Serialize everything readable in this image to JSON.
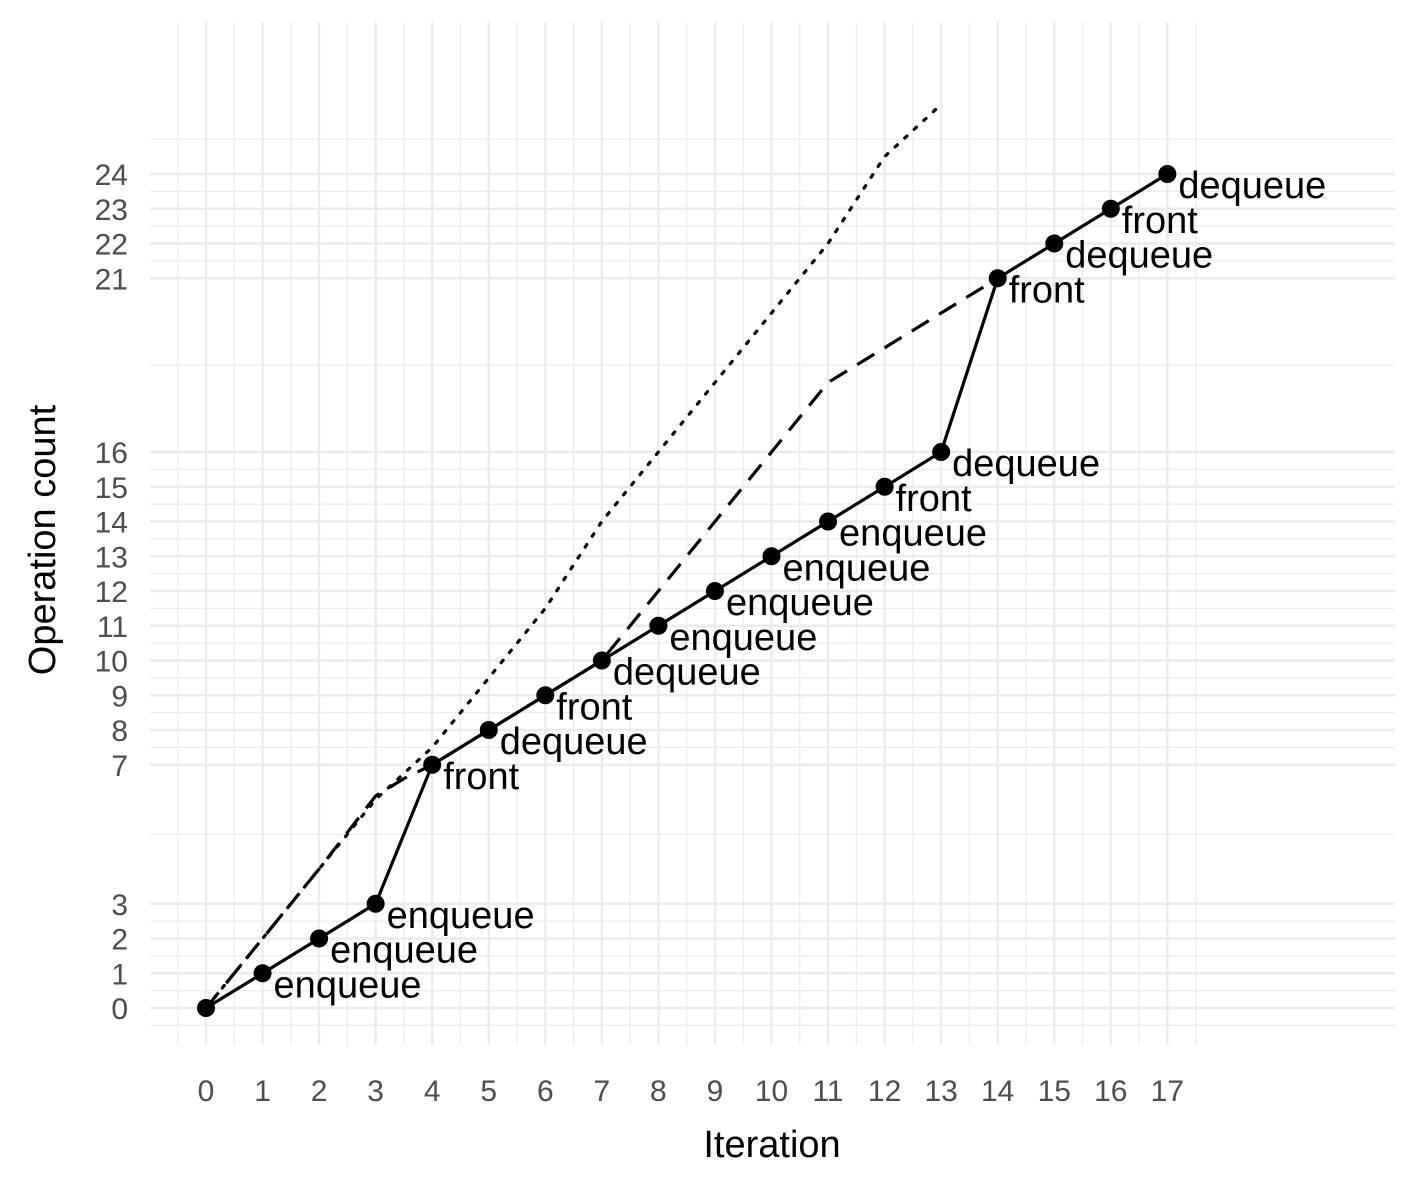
{
  "chart_data": {
    "type": "line",
    "xlabel": "Iteration",
    "ylabel": "Operation count",
    "xlim": [
      -1,
      21
    ],
    "ylim": [
      -0.5,
      30
    ],
    "x_ticks": [
      0,
      1,
      2,
      3,
      4,
      5,
      6,
      7,
      8,
      9,
      10,
      11,
      12,
      13,
      14,
      15,
      16,
      17
    ],
    "y_ticks": [
      0,
      1,
      2,
      3,
      7,
      8,
      9,
      10,
      11,
      12,
      13,
      14,
      15,
      16,
      21,
      22,
      23,
      24
    ],
    "grid": true,
    "series": [
      {
        "style": "solid",
        "markers": true,
        "x": [
          0,
          1,
          2,
          3,
          4,
          5,
          6,
          7,
          8,
          9,
          10,
          11,
          12,
          13,
          14,
          15,
          16,
          17
        ],
        "y": [
          0,
          1,
          2,
          3,
          7,
          8,
          9,
          10,
          11,
          12,
          13,
          14,
          15,
          16,
          21,
          22,
          23,
          24
        ],
        "labels": [
          "",
          "enqueue",
          "enqueue",
          "enqueue",
          "front",
          "dequeue",
          "front",
          "dequeue",
          "enqueue",
          "enqueue",
          "enqueue",
          "enqueue",
          "front",
          "dequeue",
          "front",
          "dequeue",
          "front",
          "dequeue"
        ]
      },
      {
        "style": "dashed",
        "markers": false,
        "x": [
          0,
          1,
          2,
          3,
          3.5,
          4,
          5,
          6,
          7,
          8,
          9,
          10,
          11,
          12,
          13,
          14
        ],
        "y": [
          0,
          2,
          4,
          6.1,
          6.6,
          7,
          8,
          9,
          10,
          12,
          14,
          16,
          18,
          19,
          20,
          21
        ]
      },
      {
        "style": "dotted",
        "markers": false,
        "x": [
          0,
          1,
          2,
          3,
          4,
          5,
          6,
          7,
          8,
          9,
          10,
          11,
          12,
          13
        ],
        "y": [
          0,
          2,
          4,
          6,
          7.5,
          9.5,
          11.5,
          14,
          16,
          18,
          20,
          22,
          24.5,
          26
        ]
      }
    ],
    "colors": {
      "line": "#000000",
      "grid": "#ebebeb",
      "tick_text": "#4d4d4d",
      "background": "#ffffff"
    }
  }
}
